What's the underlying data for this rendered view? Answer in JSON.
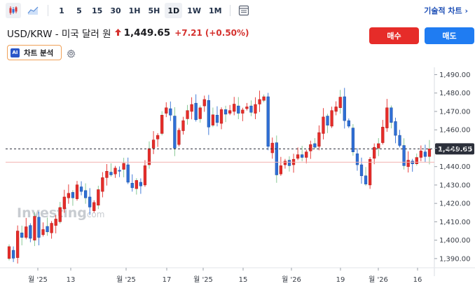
{
  "toolbar": {
    "intervals": [
      "1",
      "5",
      "15",
      "30",
      "1H",
      "5H",
      "1D",
      "1W",
      "1M"
    ],
    "active_interval": "1D",
    "technical_chart_label": "기술적 차트 ›"
  },
  "header": {
    "symbol_name": "USD/KRW - 미국 달러 원",
    "price": "1,449.65",
    "change": "+7.21",
    "change_pct": "(+0.50%)",
    "buy_label": "매수",
    "sell_label": "매도",
    "ai_badge": "AI",
    "ai_label": "차트 분석"
  },
  "colors": {
    "up": "#26a69a",
    "down": "#e62c29",
    "buy": "#e62c29",
    "sell": "#1f7cf2",
    "price_label_bg": "#2b2f3a",
    "change": "#d5322f"
  },
  "chart_data": {
    "type": "candlestick",
    "y_ticks": [
      "1,490.00",
      "1,480.00",
      "1,470.00",
      "1,460.00",
      "1,450.00",
      "1,440.00",
      "1,430.00",
      "1,420.00",
      "1,410.00",
      "1,400.00",
      "1,390.00"
    ],
    "ylim": [
      1385,
      1494
    ],
    "x_ticks": [
      "월 '25",
      "13",
      "월 '25",
      "17",
      "월 '25",
      "15",
      "월 '26",
      "19",
      "월 '26",
      "16"
    ],
    "current_price": 1449.65,
    "current_price_label": "1,449.65",
    "prev_close": 1442.4,
    "watermark": "Investing",
    "watermark_suffix": ".com",
    "candles": [
      [
        1390.0,
        1396.5
      ],
      [
        1394.5,
        1390.2
      ],
      [
        1390.5,
        1405.0
      ],
      [
        1404.0,
        1401.5
      ],
      [
        1401.5,
        1407.3
      ],
      [
        1408.0,
        1401.0
      ],
      [
        1400.0,
        1413.0
      ],
      [
        1412.5,
        1401.5
      ],
      [
        1403.0,
        1405.8
      ],
      [
        1407.5,
        1404.5
      ],
      [
        1404.0,
        1409.2
      ],
      [
        1408.0,
        1411.5
      ],
      [
        1410.0,
        1417.8
      ],
      [
        1417.0,
        1423.5
      ],
      [
        1423.0,
        1425.5
      ],
      [
        1426.0,
        1423.0
      ],
      [
        1422.5,
        1430.1
      ],
      [
        1429.0,
        1426.5
      ],
      [
        1427.0,
        1423.0
      ],
      [
        1423.5,
        1418.0
      ],
      [
        1416.0,
        1420.5
      ],
      [
        1419.0,
        1427.5
      ],
      [
        1426.5,
        1434.0
      ],
      [
        1434.0,
        1437.5
      ],
      [
        1437.0,
        1435.5
      ],
      [
        1436.0,
        1439.2
      ],
      [
        1438.0,
        1437.5
      ],
      [
        1438.5,
        1441.8
      ],
      [
        1441.0,
        1431.5
      ],
      [
        1431.0,
        1428.5
      ],
      [
        1428.0,
        1432.5
      ],
      [
        1431.5,
        1429.5
      ],
      [
        1430.0,
        1440.5
      ],
      [
        1441.0,
        1449.8
      ],
      [
        1450.0,
        1454.5
      ],
      [
        1455.0,
        1457.0
      ],
      [
        1458.0,
        1468.0
      ],
      [
        1469.0,
        1472.0
      ],
      [
        1471.5,
        1468.0
      ],
      [
        1467.5,
        1450.0
      ],
      [
        1452.0,
        1459.8
      ],
      [
        1459.5,
        1465.0
      ],
      [
        1466.0,
        1470.5
      ],
      [
        1470.0,
        1473.8
      ],
      [
        1474.5,
        1465.5
      ],
      [
        1466.0,
        1472.0
      ],
      [
        1473.0,
        1476.5
      ],
      [
        1476.0,
        1461.5
      ],
      [
        1462.5,
        1468.2
      ],
      [
        1468.0,
        1464.0
      ],
      [
        1463.5,
        1471.0
      ],
      [
        1471.0,
        1468.5
      ],
      [
        1469.0,
        1470.5
      ],
      [
        1470.0,
        1474.0
      ],
      [
        1473.0,
        1469.0
      ],
      [
        1469.0,
        1470.8
      ],
      [
        1471.5,
        1472.5
      ],
      [
        1473.0,
        1469.5
      ],
      [
        1469.0,
        1473.8
      ],
      [
        1474.0,
        1476.5
      ],
      [
        1476.0,
        1478.0
      ],
      [
        1478.0,
        1451.0
      ],
      [
        1447.5,
        1452.8
      ],
      [
        1453.0,
        1435.5
      ],
      [
        1436.0,
        1440.5
      ],
      [
        1441.0,
        1443.0
      ],
      [
        1443.5,
        1440.5
      ],
      [
        1441.0,
        1444.0
      ],
      [
        1444.5,
        1446.5
      ],
      [
        1446.5,
        1445.0
      ],
      [
        1445.0,
        1448.0
      ],
      [
        1448.5,
        1452.0
      ],
      [
        1452.5,
        1450.5
      ],
      [
        1451.0,
        1458.5
      ],
      [
        1458.0,
        1467.0
      ],
      [
        1467.5,
        1462.5
      ],
      [
        1462.0,
        1470.5
      ],
      [
        1470.0,
        1472.5
      ],
      [
        1472.0,
        1477.8
      ],
      [
        1478.0,
        1465.0
      ],
      [
        1465.0,
        1462.0
      ],
      [
        1461.0,
        1448.0
      ],
      [
        1447.0,
        1441.0
      ],
      [
        1441.0,
        1435.0
      ],
      [
        1435.0,
        1430.5
      ],
      [
        1430.0,
        1444.0
      ],
      [
        1444.5,
        1450.5
      ],
      [
        1450.0,
        1452.5
      ],
      [
        1453.0,
        1461.5
      ],
      [
        1461.0,
        1472.0
      ],
      [
        1472.0,
        1464.0
      ],
      [
        1464.5,
        1457.0
      ],
      [
        1457.0,
        1451.5
      ],
      [
        1451.5,
        1440.5
      ],
      [
        1440.0,
        1443.5
      ],
      [
        1443.0,
        1441.5
      ],
      [
        1441.5,
        1445.0
      ],
      [
        1445.0,
        1448.5
      ],
      [
        1448.0,
        1445.5
      ],
      [
        1445.5,
        1449.65
      ]
    ]
  }
}
